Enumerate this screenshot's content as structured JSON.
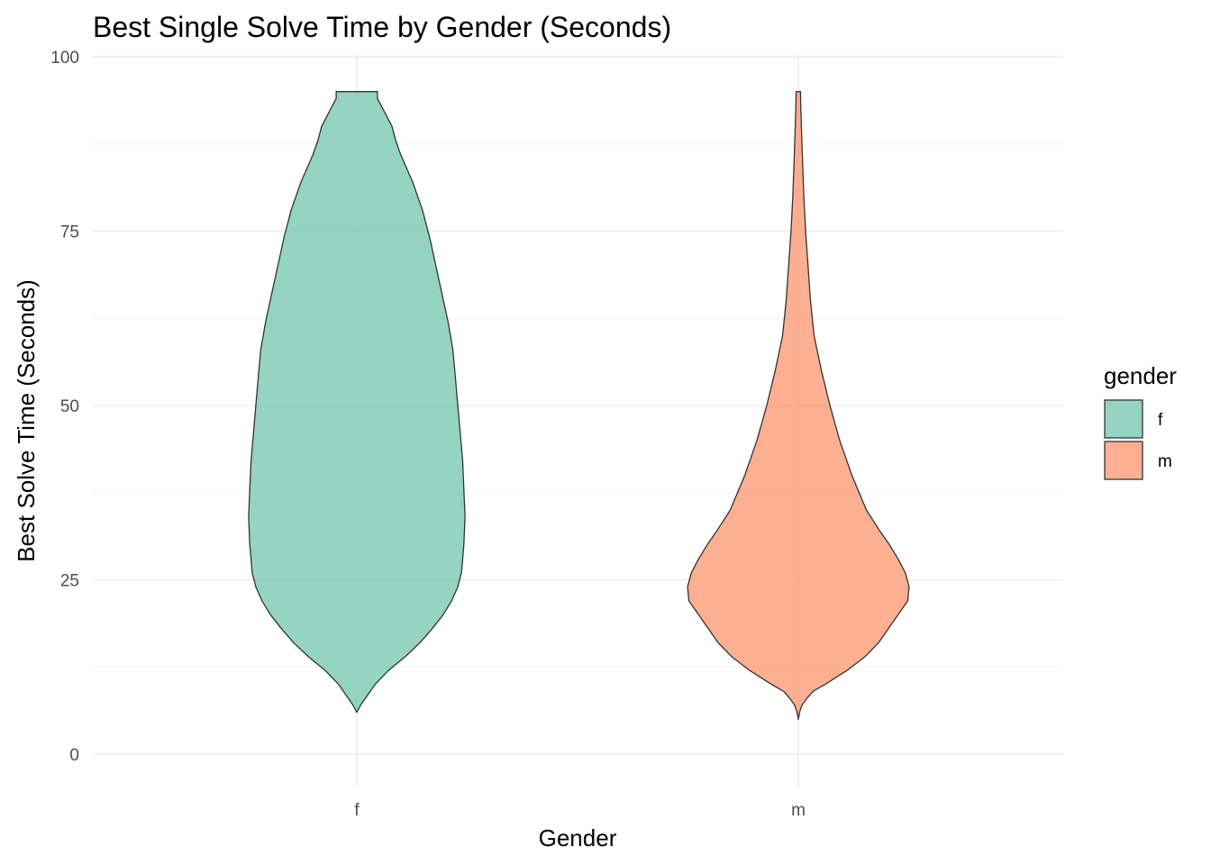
{
  "chart_data": {
    "type": "violin",
    "title": "Best Single Solve Time by Gender (Seconds)",
    "xlabel": "Gender",
    "ylabel": "Best Solve Time (Seconds)",
    "categories": [
      "f",
      "m"
    ],
    "ylim": [
      -4,
      100
    ],
    "yticks": [
      0,
      25,
      50,
      75,
      100
    ],
    "grid": true,
    "fill_alpha": 0.7,
    "legend": {
      "title": "gender",
      "position": "right",
      "items": [
        {
          "label": "f",
          "color": "#66c2a5"
        },
        {
          "label": "m",
          "color": "#fc8d62"
        }
      ]
    },
    "series": [
      {
        "category": "f",
        "color": "#66c2a5",
        "y_range": [
          6,
          95
        ],
        "density_profile": [
          [
            6,
            0.0
          ],
          [
            7,
            0.03
          ],
          [
            8,
            0.07
          ],
          [
            10,
            0.15
          ],
          [
            12,
            0.26
          ],
          [
            14,
            0.4
          ],
          [
            16,
            0.52
          ],
          [
            18,
            0.62
          ],
          [
            20,
            0.71
          ],
          [
            22,
            0.78
          ],
          [
            24,
            0.83
          ],
          [
            26,
            0.86
          ],
          [
            28,
            0.87
          ],
          [
            30,
            0.88
          ],
          [
            34,
            0.89
          ],
          [
            38,
            0.88
          ],
          [
            42,
            0.87
          ],
          [
            46,
            0.85
          ],
          [
            50,
            0.83
          ],
          [
            54,
            0.81
          ],
          [
            58,
            0.79
          ],
          [
            62,
            0.75
          ],
          [
            66,
            0.7
          ],
          [
            70,
            0.65
          ],
          [
            74,
            0.6
          ],
          [
            78,
            0.54
          ],
          [
            82,
            0.46
          ],
          [
            86,
            0.36
          ],
          [
            88,
            0.32
          ],
          [
            90,
            0.29
          ],
          [
            92,
            0.23
          ],
          [
            94,
            0.17
          ],
          [
            95,
            0.17
          ]
        ]
      },
      {
        "category": "m",
        "color": "#fc8d62",
        "y_range": [
          5,
          95
        ],
        "density_profile": [
          [
            5,
            0.0
          ],
          [
            6,
            0.01
          ],
          [
            7,
            0.03
          ],
          [
            8,
            0.07
          ],
          [
            9,
            0.12
          ],
          [
            10,
            0.22
          ],
          [
            12,
            0.4
          ],
          [
            14,
            0.55
          ],
          [
            16,
            0.66
          ],
          [
            18,
            0.74
          ],
          [
            20,
            0.82
          ],
          [
            22,
            0.9
          ],
          [
            24,
            0.91
          ],
          [
            26,
            0.88
          ],
          [
            28,
            0.82
          ],
          [
            30,
            0.75
          ],
          [
            32,
            0.67
          ],
          [
            35,
            0.56
          ],
          [
            40,
            0.44
          ],
          [
            45,
            0.34
          ],
          [
            50,
            0.26
          ],
          [
            55,
            0.19
          ],
          [
            60,
            0.13
          ],
          [
            65,
            0.1
          ],
          [
            70,
            0.08
          ],
          [
            75,
            0.06
          ],
          [
            80,
            0.045
          ],
          [
            85,
            0.035
          ],
          [
            90,
            0.025
          ],
          [
            93,
            0.02
          ],
          [
            95,
            0.018
          ]
        ]
      }
    ]
  }
}
